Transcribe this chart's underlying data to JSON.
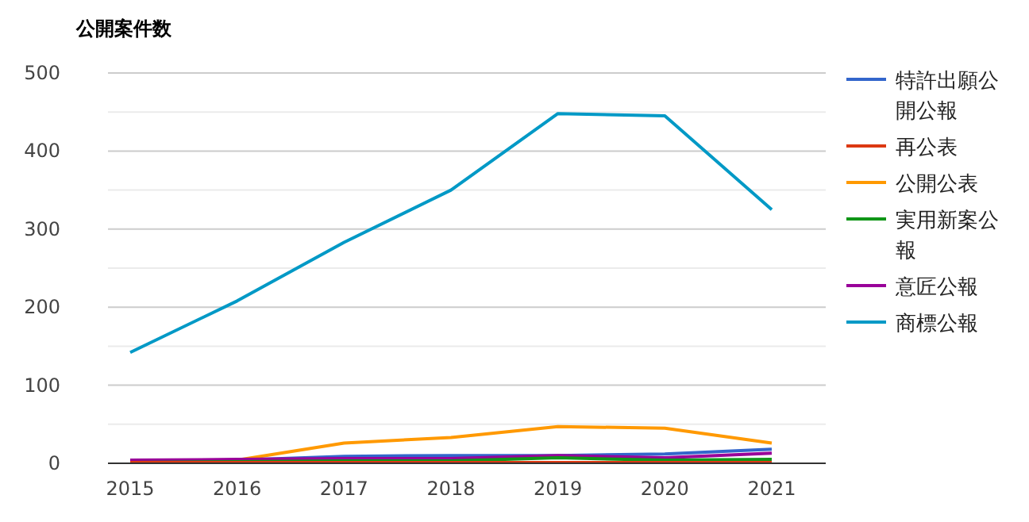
{
  "chart_data": {
    "type": "line",
    "title": "公開案件数",
    "categories": [
      "2015",
      "2016",
      "2017",
      "2018",
      "2019",
      "2020",
      "2021"
    ],
    "series": [
      {
        "name": "特許出願公開公報",
        "color": "#3366cc",
        "values": [
          3,
          4,
          9,
          10,
          10,
          12,
          18
        ]
      },
      {
        "name": "再公表",
        "color": "#dc3912",
        "values": [
          1,
          1,
          1,
          1,
          1,
          1,
          1
        ]
      },
      {
        "name": "公開公表",
        "color": "#ff9900",
        "values": [
          2,
          4,
          26,
          33,
          47,
          45,
          26
        ]
      },
      {
        "name": "実用新案公報",
        "color": "#109618",
        "values": [
          1,
          2,
          3,
          3,
          7,
          4,
          5
        ]
      },
      {
        "name": "意匠公報",
        "color": "#990099",
        "values": [
          4,
          5,
          6,
          6,
          10,
          7,
          13
        ]
      },
      {
        "name": "商標公報",
        "color": "#0099c6",
        "values": [
          142,
          208,
          283,
          350,
          448,
          445,
          325
        ]
      }
    ],
    "ylim": [
      0,
      500
    ],
    "yticks": [
      0,
      {
        "value": 50,
        "label": null
      },
      100,
      {
        "value": 150,
        "label": null
      },
      200,
      {
        "value": 250,
        "label": null
      },
      300,
      {
        "value": 350,
        "label": null
      },
      400,
      {
        "value": 450,
        "label": null
      },
      500
    ],
    "grid": "y",
    "legend": "right",
    "marker": "none",
    "line_style": "solid"
  }
}
